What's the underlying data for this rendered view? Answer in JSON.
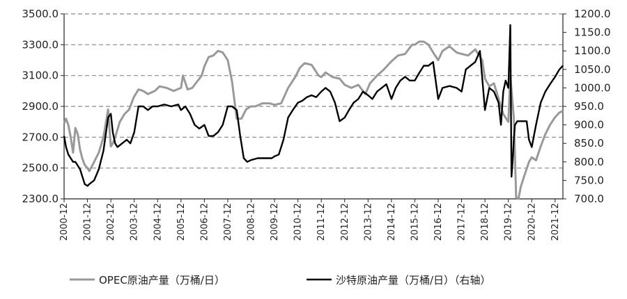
{
  "chart_data": {
    "type": "line",
    "title": "",
    "xlabel": "",
    "ylabel": "",
    "y_left": {
      "range": [
        2300,
        3500
      ],
      "ticks": [
        "3500.0",
        "3300.0",
        "3100.0",
        "2900.0",
        "2700.0",
        "2500.0",
        "2300.0"
      ],
      "tick_values": [
        3500,
        3300,
        3100,
        2900,
        2700,
        2500,
        2300
      ]
    },
    "y_right": {
      "range": [
        700,
        1200
      ],
      "ticks": [
        "1200.0",
        "1150.0",
        "1100.0",
        "1050.0",
        "1000.0",
        "950.0",
        "900.0",
        "850.0",
        "800.0",
        "750.0",
        "700.0"
      ],
      "tick_values": [
        1200,
        1150,
        1100,
        1050,
        1000,
        950,
        900,
        850,
        800,
        750,
        700
      ]
    },
    "x_range": [
      2000.917,
      2022.25
    ],
    "x_ticks": [
      "2000-12",
      "2001-12",
      "2002-12",
      "2003-12",
      "2004-12",
      "2005-12",
      "2006-12",
      "2007-12",
      "2008-12",
      "2009-12",
      "2010-12",
      "2011-12",
      "2012-12",
      "2013-12",
      "2014-12",
      "2015-12",
      "2016-12",
      "2017-12",
      "2018-12",
      "2019-12",
      "2020-12",
      "2021-12"
    ],
    "x_tick_values": [
      2000.917,
      2001.917,
      2002.917,
      2003.917,
      2004.917,
      2005.917,
      2006.917,
      2007.917,
      2008.917,
      2009.917,
      2010.917,
      2011.917,
      2012.917,
      2013.917,
      2014.917,
      2015.917,
      2016.917,
      2017.917,
      2018.917,
      2019.917,
      2020.917,
      2021.917
    ],
    "gridlines": {
      "axis": "y-left",
      "style": "dashed",
      "values": [
        3500,
        3300,
        3100,
        2900,
        2700,
        2500
      ]
    },
    "legend_position": "bottom",
    "series": [
      {
        "name": "OPEC原油产量（万桶/日）",
        "axis": "left",
        "color": "#999999",
        "x": [
          2000.917,
          2001.0,
          2001.1,
          2001.2,
          2001.3,
          2001.4,
          2001.5,
          2001.6,
          2001.7,
          2001.8,
          2001.917,
          2002.0,
          2002.2,
          2002.4,
          2002.6,
          2002.8,
          2002.917,
          2003.0,
          2003.1,
          2003.3,
          2003.5,
          2003.7,
          2003.9,
          2004.1,
          2004.3,
          2004.5,
          2004.8,
          2005.0,
          2005.3,
          2005.6,
          2005.917,
          2006.0,
          2006.2,
          2006.4,
          2006.6,
          2006.8,
          2006.917,
          2007.1,
          2007.3,
          2007.5,
          2007.7,
          2007.917,
          2008.1,
          2008.3,
          2008.5,
          2008.7,
          2008.9,
          2009.1,
          2009.4,
          2009.7,
          2009.917,
          2010.2,
          2010.5,
          2010.8,
          2011.0,
          2011.2,
          2011.5,
          2011.8,
          2011.917,
          2012.1,
          2012.4,
          2012.7,
          2012.917,
          2013.2,
          2013.5,
          2013.8,
          2014.0,
          2014.3,
          2014.6,
          2014.9,
          2015.2,
          2015.5,
          2015.8,
          2015.917,
          2016.1,
          2016.3,
          2016.5,
          2016.7,
          2016.917,
          2017.1,
          2017.4,
          2017.7,
          2017.917,
          2018.2,
          2018.5,
          2018.8,
          2018.917,
          2019.1,
          2019.3,
          2019.5,
          2019.7,
          2019.917,
          2020.0,
          2020.15,
          2020.25,
          2020.35,
          2020.45,
          2020.6,
          2020.8,
          2020.917,
          2021.1,
          2021.3,
          2021.5,
          2021.7,
          2021.917,
          2022.1,
          2022.25
        ],
        "values": [
          2790,
          2820,
          2780,
          2700,
          2600,
          2760,
          2720,
          2620,
          2560,
          2520,
          2500,
          2480,
          2540,
          2600,
          2700,
          2880,
          2640,
          2660,
          2700,
          2800,
          2850,
          2880,
          2960,
          3010,
          3000,
          2980,
          3000,
          3030,
          3020,
          3000,
          3020,
          3100,
          3010,
          3020,
          3060,
          3100,
          3160,
          3220,
          3230,
          3260,
          3250,
          3200,
          3060,
          2820,
          2820,
          2880,
          2900,
          2900,
          2920,
          2920,
          2910,
          2920,
          3020,
          3090,
          3150,
          3180,
          3170,
          3100,
          3090,
          3120,
          3090,
          3080,
          3040,
          3020,
          3040,
          2980,
          3050,
          3100,
          3140,
          3190,
          3230,
          3240,
          3300,
          3300,
          3320,
          3320,
          3300,
          3250,
          3200,
          3260,
          3290,
          3250,
          3240,
          3230,
          3270,
          3200,
          3080,
          3030,
          3050,
          2950,
          2850,
          2800,
          3100,
          2830,
          2310,
          2300,
          2380,
          2450,
          2540,
          2570,
          2550,
          2640,
          2720,
          2780,
          2830,
          2860,
          2870
        ]
      },
      {
        "name": "沙特原油产量（万桶/日）（右轴）",
        "axis": "right",
        "color": "#000000",
        "x": [
          2000.917,
          2001.0,
          2001.1,
          2001.2,
          2001.3,
          2001.4,
          2001.5,
          2001.6,
          2001.7,
          2001.8,
          2001.917,
          2002.0,
          2002.2,
          2002.4,
          2002.6,
          2002.8,
          2002.917,
          2003.0,
          2003.1,
          2003.2,
          2003.4,
          2003.6,
          2003.75,
          2003.917,
          2004.1,
          2004.3,
          2004.5,
          2004.7,
          2004.917,
          2005.2,
          2005.5,
          2005.8,
          2005.917,
          2006.1,
          2006.3,
          2006.5,
          2006.7,
          2006.917,
          2007.1,
          2007.3,
          2007.5,
          2007.7,
          2007.917,
          2008.1,
          2008.3,
          2008.45,
          2008.6,
          2008.75,
          2008.917,
          2009.2,
          2009.5,
          2009.8,
          2009.917,
          2010.1,
          2010.3,
          2010.5,
          2010.7,
          2010.917,
          2011.1,
          2011.3,
          2011.5,
          2011.7,
          2011.917,
          2012.1,
          2012.3,
          2012.5,
          2012.7,
          2012.917,
          2013.1,
          2013.3,
          2013.5,
          2013.7,
          2013.917,
          2014.1,
          2014.3,
          2014.5,
          2014.7,
          2014.917,
          2015.1,
          2015.3,
          2015.5,
          2015.7,
          2015.917,
          2016.1,
          2016.3,
          2016.5,
          2016.7,
          2016.917,
          2017.1,
          2017.4,
          2017.7,
          2017.917,
          2018.1,
          2018.3,
          2018.5,
          2018.7,
          2018.917,
          2019.1,
          2019.3,
          2019.5,
          2019.6,
          2019.7,
          2019.8,
          2019.917,
          2020.0,
          2020.05,
          2020.1,
          2020.15,
          2020.2,
          2020.3,
          2020.5,
          2020.7,
          2020.8,
          2020.917,
          2021.1,
          2021.3,
          2021.5,
          2021.7,
          2021.917,
          2022.1,
          2022.25
        ],
        "values": [
          870,
          840,
          820,
          810,
          800,
          800,
          790,
          780,
          760,
          740,
          735,
          740,
          750,
          780,
          830,
          920,
          930,
          880,
          850,
          840,
          850,
          860,
          850,
          880,
          950,
          950,
          940,
          950,
          950,
          955,
          950,
          955,
          940,
          950,
          930,
          900,
          890,
          900,
          870,
          870,
          880,
          900,
          950,
          950,
          940,
          870,
          810,
          800,
          805,
          810,
          810,
          810,
          815,
          820,
          860,
          920,
          940,
          960,
          965,
          975,
          980,
          975,
          990,
          1000,
          990,
          960,
          910,
          920,
          940,
          960,
          970,
          990,
          980,
          970,
          990,
          1000,
          1010,
          970,
          1000,
          1020,
          1030,
          1020,
          1020,
          1040,
          1060,
          1060,
          1070,
          970,
          1000,
          1005,
          1000,
          990,
          1050,
          1060,
          1070,
          1100,
          940,
          1000,
          990,
          960,
          900,
          990,
          1020,
          1000,
          1170,
          760,
          800,
          860,
          900,
          910,
          910,
          910,
          860,
          840,
          900,
          960,
          990,
          1010,
          1030,
          1050,
          1060
        ]
      }
    ]
  }
}
